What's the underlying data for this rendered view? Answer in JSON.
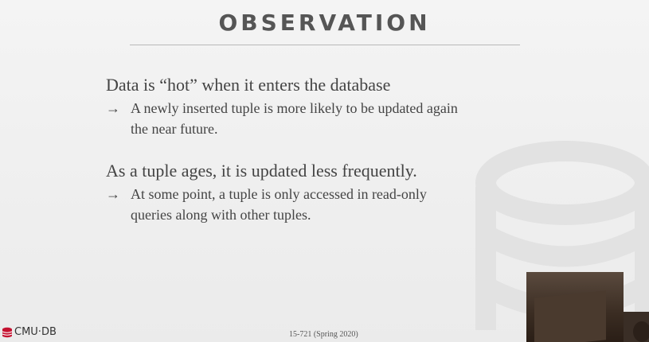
{
  "slide": {
    "title": "OBSERVATION",
    "bullets": [
      {
        "text": "Data is “hot” when it enters the database",
        "sub": {
          "arrow": "→",
          "line1": "A newly inserted tuple is more likely to be updated again",
          "line2": "the near future."
        }
      },
      {
        "text": "As a tuple ages, it is updated less frequently.",
        "sub": {
          "arrow": "→",
          "line1": "At some point, a tuple is only accessed in read-only",
          "line2": "queries along with other tuples."
        }
      }
    ],
    "footer": {
      "logo_text": "CMU·DB",
      "course": "15-721 (Spring 2020)"
    }
  },
  "colors": {
    "accent": "#c41230",
    "text": "#444444"
  },
  "icons": [
    "database-watermark-icon",
    "cmu-db-logo-icon"
  ]
}
